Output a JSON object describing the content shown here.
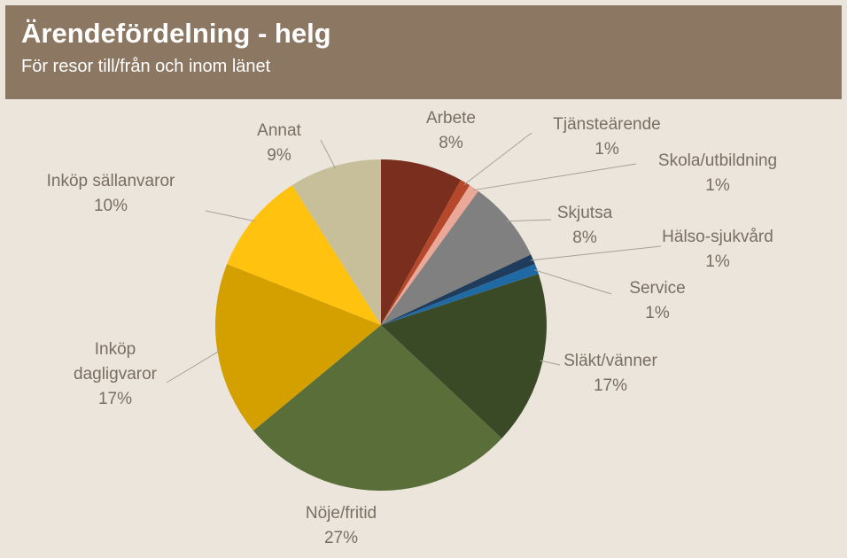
{
  "chart_data": {
    "type": "pie",
    "title": "Ärendefördelning - helg",
    "subtitle": "För resor till/från och inom länet",
    "categories": [
      "Arbete",
      "Tjänsteärende",
      "Skola/utbildning",
      "Skjutsa",
      "Hälso-sjukvård",
      "Service",
      "Släkt/vänner",
      "Nöje/fritid",
      "Inköp dagligvaror",
      "Inköp sällanvaror",
      "Annat"
    ],
    "values": [
      8,
      1,
      1,
      8,
      1,
      1,
      17,
      27,
      17,
      10,
      9
    ],
    "value_labels": [
      "8%",
      "1%",
      "1%",
      "8%",
      "1%",
      "1%",
      "17%",
      "27%",
      "17%",
      "10%",
      "9%"
    ],
    "colors": [
      "#7a2f1e",
      "#b5472a",
      "#eba899",
      "#808080",
      "#1f3c5c",
      "#1f6aa5",
      "#3b4a26",
      "#5a6e3a",
      "#d4a000",
      "#ffc20e",
      "#c7bf99"
    ]
  }
}
